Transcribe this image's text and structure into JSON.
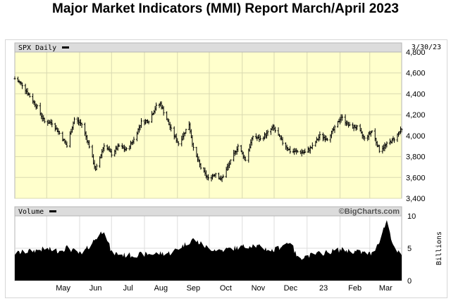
{
  "title": "Major Market Indicators (MMI) Report March/April 2023",
  "chart_data": [
    {
      "type": "ohlc",
      "name": "SPX Daily",
      "date_label": "3/30/23",
      "ylim": [
        3400,
        4800
      ],
      "yticks": [
        3400,
        3600,
        3800,
        4000,
        4200,
        4400,
        4600,
        4800
      ],
      "ytick_labels": [
        "3,400",
        "3,600",
        "3,800",
        "4,000",
        "4,200",
        "4,400",
        "4,600",
        "4,800"
      ],
      "x_labels": [
        "May",
        "Jun",
        "Jul",
        "Aug",
        "Sep",
        "Oct",
        "Nov",
        "Dec",
        "23",
        "Feb",
        "Mar"
      ],
      "close_series": [
        [
          "2022-04-01",
          4545
        ],
        [
          "2022-04-08",
          4488
        ],
        [
          "2022-04-14",
          4393
        ],
        [
          "2022-04-22",
          4272
        ],
        [
          "2022-04-29",
          4132
        ],
        [
          "2022-05-06",
          4123
        ],
        [
          "2022-05-13",
          4023
        ],
        [
          "2022-05-20",
          3901
        ],
        [
          "2022-05-27",
          4158
        ],
        [
          "2022-06-03",
          4109
        ],
        [
          "2022-06-10",
          3901
        ],
        [
          "2022-06-16",
          3667
        ],
        [
          "2022-06-24",
          3912
        ],
        [
          "2022-07-01",
          3825
        ],
        [
          "2022-07-08",
          3899
        ],
        [
          "2022-07-15",
          3863
        ],
        [
          "2022-07-22",
          3962
        ],
        [
          "2022-07-29",
          4130
        ],
        [
          "2022-08-05",
          4145
        ],
        [
          "2022-08-12",
          4280
        ],
        [
          "2022-08-16",
          4305
        ],
        [
          "2022-08-26",
          4058
        ],
        [
          "2022-09-02",
          3924
        ],
        [
          "2022-09-12",
          4110
        ],
        [
          "2022-09-16",
          3873
        ],
        [
          "2022-09-23",
          3693
        ],
        [
          "2022-09-30",
          3586
        ],
        [
          "2022-10-07",
          3640
        ],
        [
          "2022-10-12",
          3577
        ],
        [
          "2022-10-21",
          3752
        ],
        [
          "2022-10-28",
          3901
        ],
        [
          "2022-11-04",
          3770
        ],
        [
          "2022-11-11",
          3993
        ],
        [
          "2022-11-18",
          3965
        ],
        [
          "2022-11-25",
          4026
        ],
        [
          "2022-11-30",
          4080
        ],
        [
          "2022-12-09",
          3934
        ],
        [
          "2022-12-16",
          3852
        ],
        [
          "2022-12-23",
          3845
        ],
        [
          "2022-12-30",
          3839
        ],
        [
          "2023-01-06",
          3895
        ],
        [
          "2023-01-13",
          3999
        ],
        [
          "2023-01-20",
          3972
        ],
        [
          "2023-01-27",
          4070
        ],
        [
          "2023-02-02",
          4179
        ],
        [
          "2023-02-10",
          4090
        ],
        [
          "2023-02-17",
          4079
        ],
        [
          "2023-02-24",
          3970
        ],
        [
          "2023-03-03",
          4045
        ],
        [
          "2023-03-10",
          3861
        ],
        [
          "2023-03-17",
          3916
        ],
        [
          "2023-03-24",
          3970
        ],
        [
          "2023-03-30",
          4050
        ]
      ]
    },
    {
      "type": "area",
      "name": "Volume",
      "ylabel": "Billions",
      "credit": "©BigCharts.com",
      "ylim": [
        0,
        10
      ],
      "yticks": [
        0,
        5,
        10
      ],
      "ytick_labels": [
        "0",
        "5",
        "10"
      ],
      "volume_series": [
        [
          "2022-04-01",
          4.2
        ],
        [
          "2022-04-29",
          4.9
        ],
        [
          "2022-05-13",
          4.6
        ],
        [
          "2022-05-20",
          5.1
        ],
        [
          "2022-06-03",
          4.0
        ],
        [
          "2022-06-16",
          6.5
        ],
        [
          "2022-06-24",
          7.9
        ],
        [
          "2022-07-01",
          4.3
        ],
        [
          "2022-07-15",
          3.9
        ],
        [
          "2022-08-05",
          4.1
        ],
        [
          "2022-08-26",
          4.3
        ],
        [
          "2022-09-16",
          6.4
        ],
        [
          "2022-09-30",
          5.0
        ],
        [
          "2022-10-12",
          4.7
        ],
        [
          "2022-11-11",
          5.5
        ],
        [
          "2022-11-30",
          4.6
        ],
        [
          "2022-12-16",
          6.1
        ],
        [
          "2022-12-23",
          3.5
        ],
        [
          "2023-01-13",
          4.2
        ],
        [
          "2023-02-02",
          4.8
        ],
        [
          "2023-03-03",
          4.1
        ],
        [
          "2023-03-10",
          6.2
        ],
        [
          "2023-03-17",
          9.3
        ],
        [
          "2023-03-24",
          4.9
        ],
        [
          "2023-03-30",
          4.0
        ]
      ]
    }
  ]
}
